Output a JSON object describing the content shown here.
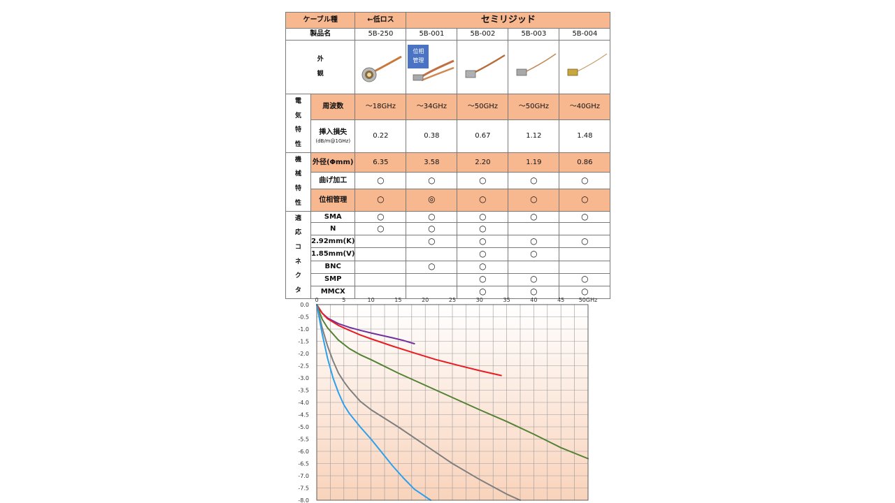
{
  "table": {
    "header_label": "ケーブル種",
    "low_loss_label": "←低ロス",
    "family_label": "セミリジッド",
    "product_row_label": "製品名",
    "products": [
      "5B-250",
      "5B-001",
      "5B-002",
      "5B-003",
      "5B-004"
    ],
    "appearance_label": [
      "外",
      "観"
    ],
    "phase_badge": [
      "位相",
      "管理"
    ],
    "electrical_group": [
      "電",
      "気",
      "特",
      "性"
    ],
    "mechanical_group": [
      "機",
      "械",
      "特",
      "性"
    ],
    "connector_group": [
      "適",
      "応",
      "コ",
      "ネ",
      "ク",
      "タ"
    ],
    "frequency_label": "周波数",
    "frequency_values": [
      "～18GHz",
      "～34GHz",
      "～50GHz",
      "～50GHz",
      "～40GHz"
    ],
    "insertion_loss_label": "挿入損失",
    "insertion_loss_unit": "(dB/m@1GHz)",
    "insertion_loss_values": [
      "0.22",
      "0.38",
      "0.67",
      "1.12",
      "1.48"
    ],
    "outer_diameter_label": "外径(Φmm)",
    "outer_diameter_values": [
      "6.35",
      "3.58",
      "2.20",
      "1.19",
      "0.86"
    ],
    "bend_label": "曲げ加工",
    "bend_values": [
      "○",
      "○",
      "○",
      "○",
      "○"
    ],
    "phase_label": "位相管理",
    "phase_values": [
      "○",
      "◎",
      "○",
      "○",
      "○"
    ],
    "connectors": [
      {
        "label": "SMA",
        "values": [
          "○",
          "○",
          "○",
          "○",
          "○"
        ]
      },
      {
        "label": "N",
        "values": [
          "○",
          "○",
          "○",
          "",
          ""
        ]
      },
      {
        "label": "2.92mm(K)",
        "values": [
          "",
          "○",
          "○",
          "○",
          "○"
        ]
      },
      {
        "label": "1.85mm(V)",
        "values": [
          "",
          "",
          "○",
          "○",
          ""
        ]
      },
      {
        "label": "BNC",
        "values": [
          "",
          "○",
          "○",
          "",
          ""
        ]
      },
      {
        "label": "SMP",
        "values": [
          "",
          "",
          "○",
          "○",
          "○"
        ]
      },
      {
        "label": "MMCX",
        "values": [
          "",
          "",
          "○",
          "○",
          "○"
        ]
      }
    ]
  },
  "chart_data": {
    "type": "line",
    "title": "",
    "xlabel": "",
    "ylabel": "",
    "x_tick_labels": [
      "0",
      "5",
      "10",
      "15",
      "20",
      "25",
      "30",
      "35",
      "40",
      "45",
      "50GHz"
    ],
    "y_tick_labels": [
      "0.0",
      "-0.5",
      "-1.0",
      "-1.5",
      "-2.0",
      "-2.5",
      "-3.0",
      "-3.5",
      "-4.0",
      "-4.5",
      "-5.0",
      "-5.5",
      "-6.0",
      "-6.5",
      "-7.0",
      "-7.5",
      "-8.0"
    ],
    "xlim": [
      0,
      50
    ],
    "ylim": [
      -8,
      0
    ],
    "grid": true,
    "legend": "none",
    "background_gradient": [
      "#ffffff",
      "#f9d3bb"
    ],
    "series": [
      {
        "color": "#7030a0",
        "x": [
          0,
          1,
          2,
          4,
          6,
          8,
          10,
          12,
          14,
          16,
          18
        ],
        "y": [
          0,
          -0.35,
          -0.55,
          -0.78,
          -0.93,
          -1.05,
          -1.16,
          -1.26,
          -1.36,
          -1.47,
          -1.6
        ]
      },
      {
        "color": "#e81c23",
        "x": [
          0,
          1,
          2,
          4,
          6,
          8,
          10,
          14,
          18,
          22,
          26,
          30,
          34
        ],
        "y": [
          0,
          -0.35,
          -0.58,
          -0.85,
          -1.05,
          -1.24,
          -1.4,
          -1.7,
          -1.98,
          -2.25,
          -2.48,
          -2.7,
          -2.9
        ]
      },
      {
        "color": "#548235",
        "x": [
          0,
          1,
          2,
          4,
          6,
          8,
          10,
          15,
          20,
          25,
          30,
          35,
          40,
          45,
          50
        ],
        "y": [
          0,
          -0.6,
          -0.95,
          -1.45,
          -1.8,
          -2.05,
          -2.25,
          -2.8,
          -3.3,
          -3.8,
          -4.3,
          -4.78,
          -5.3,
          -5.85,
          -6.3
        ]
      },
      {
        "color": "#7f7f7f",
        "x": [
          0,
          1,
          2,
          3,
          4,
          5,
          6,
          8,
          10,
          15,
          20,
          25,
          30,
          35,
          37.5
        ],
        "y": [
          0,
          -0.95,
          -1.7,
          -2.3,
          -2.8,
          -3.15,
          -3.45,
          -3.95,
          -4.3,
          -5.0,
          -5.75,
          -6.5,
          -7.15,
          -7.75,
          -8.0
        ]
      },
      {
        "color": "#2e9fea",
        "x": [
          0,
          0.5,
          1,
          2,
          3,
          4,
          5,
          6,
          8,
          10,
          12,
          14,
          16,
          18,
          21
        ],
        "y": [
          0,
          -0.6,
          -1.2,
          -2.2,
          -3.0,
          -3.6,
          -4.1,
          -4.45,
          -5.0,
          -5.5,
          -6.05,
          -6.6,
          -7.1,
          -7.55,
          -8.0
        ]
      }
    ]
  }
}
